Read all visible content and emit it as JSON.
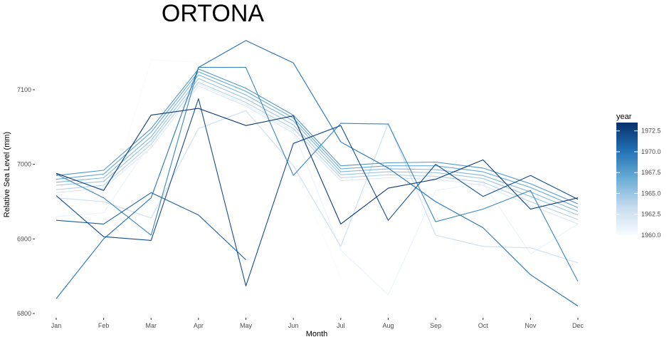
{
  "chart_data": {
    "type": "line",
    "title": "ORTONA",
    "xlabel": "Month",
    "ylabel": "Relative Sea Level (mm)",
    "categories": [
      "Jan",
      "Feb",
      "Mar",
      "Apr",
      "May",
      "Jun",
      "Jul",
      "Aug",
      "Sep",
      "Oct",
      "Nov",
      "Dec"
    ],
    "y_ticks": [
      6800,
      6900,
      7000,
      7100
    ],
    "ylim": [
      6795,
      7175
    ],
    "grid": false,
    "legend": {
      "title": "year",
      "type": "colorbar",
      "placement": "right",
      "range": [
        1960,
        1973.5
      ],
      "ticks": [
        "1960.0",
        "1962.5",
        "1965.0",
        "1967.5",
        "1970.0",
        "1972.5"
      ],
      "tick_values": [
        1960,
        1962.5,
        1965,
        1967.5,
        1970,
        1972.5
      ],
      "color_low": "#f7fbff",
      "color_high": "#08306b"
    },
    "series": [
      {
        "year": 1960,
        "values": [
          6925,
          6930,
          7140,
          7137,
          7135,
          7000,
          6848,
          null,
          null,
          null,
          null,
          null
        ]
      },
      {
        "year": 1961,
        "values": [
          6930,
          6935,
          7030,
          7108,
          7080,
          7045,
          6885,
          6825,
          6965,
          6975,
          6880,
          6920
        ]
      },
      {
        "year": 1962,
        "values": [
          6962,
          6968,
          7022,
          7105,
          7078,
          7042,
          6978,
          6982,
          6980,
          6972,
          6945,
          6920
        ]
      },
      {
        "year": 1963,
        "values": [
          6955,
          6950,
          6928,
          7048,
          7072,
          6998,
          6890,
          7055,
          6905,
          6890,
          6888,
          6868
        ]
      },
      {
        "year": 1964,
        "values": [
          6966,
          6972,
          7027,
          7110,
          7083,
          7048,
          6982,
          6986,
          6984,
          6976,
          6950,
          6926
        ]
      },
      {
        "year": 1965,
        "values": [
          6972,
          6977,
          7032,
          7115,
          7088,
          7053,
          6986,
          6990,
          6989,
          6981,
          6957,
          6932
        ]
      },
      {
        "year": 1966,
        "values": [
          6976,
          6982,
          7037,
          7120,
          7093,
          7058,
          6990,
          6994,
          6993,
          6985,
          6963,
          6937
        ]
      },
      {
        "year": 1967,
        "values": [
          6980,
          6987,
          7043,
          7124,
          7098,
          7062,
          6994,
          6998,
          6998,
          6990,
          6969,
          6942
        ]
      },
      {
        "year": 1968,
        "values": [
          6985,
          6992,
          7048,
          7128,
          7102,
          7066,
          6998,
          7002,
          7003,
          6995,
          6974,
          6947
        ]
      },
      {
        "year": 1969,
        "values": [
          6987,
          6955,
          6905,
          7130,
          7130,
          6985,
          7055,
          7054,
          6923,
          6940,
          6965,
          6843
        ]
      },
      {
        "year": 1970,
        "values": [
          6820,
          6900,
          6955,
          7130,
          7166,
          7136,
          7030,
          6995,
          6950,
          6915,
          6852,
          6810
        ]
      },
      {
        "year": 1971,
        "values": [
          6925,
          6920,
          6962,
          6932,
          6872,
          null,
          null,
          null,
          null,
          null,
          null,
          null
        ]
      },
      {
        "year": 1972,
        "values": [
          6958,
          6903,
          6898,
          7088,
          6837,
          7028,
          7052,
          6925,
          7000,
          6957,
          6985,
          6953
        ]
      },
      {
        "year": 1973,
        "values": [
          6988,
          6965,
          7066,
          7075,
          7052,
          7065,
          6920,
          6968,
          6980,
          7006,
          6940,
          6955
        ]
      }
    ]
  }
}
